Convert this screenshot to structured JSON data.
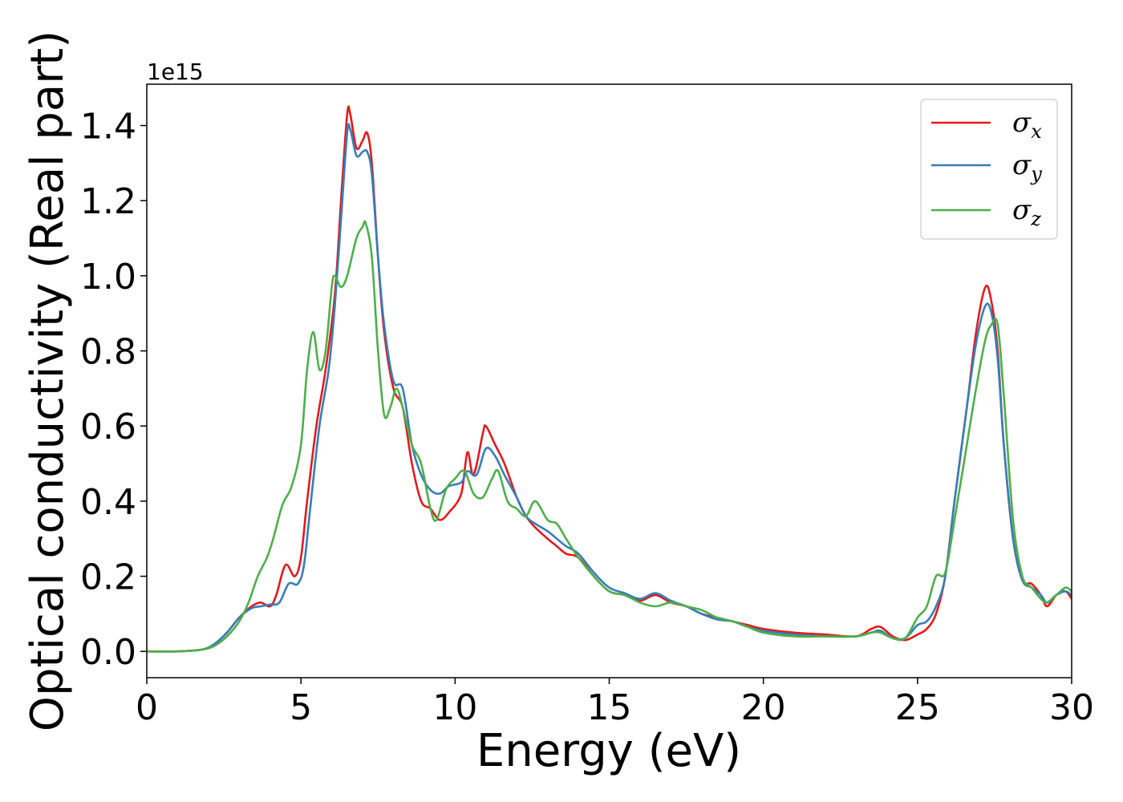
{
  "chart_data": {
    "type": "line",
    "xlabel": "Energy (eV)",
    "ylabel": "Optical conductivity (Real part)",
    "y_offset_label": "1e15",
    "xlim": [
      0,
      30
    ],
    "ylim": [
      -0.07,
      1.51
    ],
    "x_ticks": [
      0,
      5,
      10,
      15,
      20,
      25,
      30
    ],
    "x_tick_labels": [
      "0",
      "5",
      "10",
      "15",
      "20",
      "25",
      "30"
    ],
    "y_ticks": [
      0.0,
      0.2,
      0.4,
      0.6,
      0.8,
      1.0,
      1.2,
      1.4
    ],
    "y_tick_labels": [
      "0.0",
      "0.2",
      "0.4",
      "0.6",
      "0.8",
      "1.0",
      "1.2",
      "1.4"
    ],
    "grid": false,
    "legend_position": "top-right",
    "series": [
      {
        "name": "σx",
        "symbol": "σ",
        "sub": "x",
        "color": "#e41a1c",
        "points": [
          [
            0,
            0
          ],
          [
            1,
            0
          ],
          [
            1.8,
            0.005
          ],
          [
            2.2,
            0.02
          ],
          [
            2.6,
            0.05
          ],
          [
            3,
            0.09
          ],
          [
            3.4,
            0.12
          ],
          [
            3.7,
            0.13
          ],
          [
            4.0,
            0.12
          ],
          [
            4.2,
            0.15
          ],
          [
            4.5,
            0.23
          ],
          [
            4.8,
            0.2
          ],
          [
            5.0,
            0.25
          ],
          [
            5.2,
            0.4
          ],
          [
            5.5,
            0.6
          ],
          [
            5.8,
            0.75
          ],
          [
            6.1,
            0.95
          ],
          [
            6.3,
            1.2
          ],
          [
            6.5,
            1.43
          ],
          [
            6.6,
            1.43
          ],
          [
            6.8,
            1.34
          ],
          [
            7.0,
            1.36
          ],
          [
            7.15,
            1.38
          ],
          [
            7.3,
            1.3
          ],
          [
            7.5,
            1.05
          ],
          [
            7.7,
            0.85
          ],
          [
            8.0,
            0.7
          ],
          [
            8.3,
            0.65
          ],
          [
            8.6,
            0.5
          ],
          [
            8.9,
            0.4
          ],
          [
            9.2,
            0.38
          ],
          [
            9.5,
            0.35
          ],
          [
            9.8,
            0.37
          ],
          [
            10.2,
            0.42
          ],
          [
            10.4,
            0.53
          ],
          [
            10.6,
            0.47
          ],
          [
            10.9,
            0.58
          ],
          [
            11.0,
            0.6
          ],
          [
            11.3,
            0.55
          ],
          [
            11.6,
            0.5
          ],
          [
            12.0,
            0.41
          ],
          [
            12.3,
            0.36
          ],
          [
            12.6,
            0.33
          ],
          [
            13.0,
            0.3
          ],
          [
            13.3,
            0.28
          ],
          [
            13.6,
            0.26
          ],
          [
            14.0,
            0.25
          ],
          [
            14.5,
            0.2
          ],
          [
            15.0,
            0.16
          ],
          [
            15.5,
            0.15
          ],
          [
            16.0,
            0.135
          ],
          [
            16.5,
            0.15
          ],
          [
            17.0,
            0.13
          ],
          [
            17.5,
            0.12
          ],
          [
            18.0,
            0.1
          ],
          [
            18.5,
            0.09
          ],
          [
            19.0,
            0.08
          ],
          [
            19.5,
            0.07
          ],
          [
            20.0,
            0.06
          ],
          [
            21.0,
            0.05
          ],
          [
            22.0,
            0.045
          ],
          [
            23.0,
            0.04
          ],
          [
            23.5,
            0.06
          ],
          [
            23.8,
            0.065
          ],
          [
            24.2,
            0.04
          ],
          [
            24.6,
            0.03
          ],
          [
            25.0,
            0.045
          ],
          [
            25.3,
            0.06
          ],
          [
            25.6,
            0.1
          ],
          [
            25.9,
            0.2
          ],
          [
            26.2,
            0.4
          ],
          [
            26.6,
            0.65
          ],
          [
            26.9,
            0.85
          ],
          [
            27.2,
            0.97
          ],
          [
            27.4,
            0.93
          ],
          [
            27.6,
            0.8
          ],
          [
            27.8,
            0.55
          ],
          [
            28.1,
            0.3
          ],
          [
            28.4,
            0.19
          ],
          [
            28.7,
            0.18
          ],
          [
            29.0,
            0.15
          ],
          [
            29.2,
            0.12
          ],
          [
            29.5,
            0.15
          ],
          [
            29.8,
            0.16
          ],
          [
            30.0,
            0.14
          ]
        ]
      },
      {
        "name": "σy",
        "symbol": "σ",
        "sub": "y",
        "color": "#377eb8",
        "points": [
          [
            0,
            0
          ],
          [
            1,
            0
          ],
          [
            1.8,
            0.005
          ],
          [
            2.2,
            0.02
          ],
          [
            2.6,
            0.05
          ],
          [
            3,
            0.09
          ],
          [
            3.4,
            0.115
          ],
          [
            3.7,
            0.12
          ],
          [
            4.0,
            0.125
          ],
          [
            4.3,
            0.13
          ],
          [
            4.6,
            0.18
          ],
          [
            4.9,
            0.18
          ],
          [
            5.1,
            0.23
          ],
          [
            5.3,
            0.38
          ],
          [
            5.6,
            0.6
          ],
          [
            5.9,
            0.75
          ],
          [
            6.1,
            0.92
          ],
          [
            6.3,
            1.15
          ],
          [
            6.5,
            1.38
          ],
          [
            6.6,
            1.39
          ],
          [
            6.8,
            1.32
          ],
          [
            7.0,
            1.33
          ],
          [
            7.15,
            1.33
          ],
          [
            7.3,
            1.27
          ],
          [
            7.5,
            1.05
          ],
          [
            7.7,
            0.87
          ],
          [
            8.0,
            0.72
          ],
          [
            8.3,
            0.7
          ],
          [
            8.6,
            0.55
          ],
          [
            8.9,
            0.47
          ],
          [
            9.2,
            0.43
          ],
          [
            9.5,
            0.42
          ],
          [
            9.8,
            0.44
          ],
          [
            10.2,
            0.45
          ],
          [
            10.4,
            0.48
          ],
          [
            10.7,
            0.47
          ],
          [
            11.0,
            0.54
          ],
          [
            11.3,
            0.52
          ],
          [
            11.6,
            0.47
          ],
          [
            12.0,
            0.41
          ],
          [
            12.3,
            0.36
          ],
          [
            12.6,
            0.34
          ],
          [
            13.0,
            0.32
          ],
          [
            13.3,
            0.3
          ],
          [
            13.6,
            0.28
          ],
          [
            14.0,
            0.26
          ],
          [
            14.5,
            0.21
          ],
          [
            15.0,
            0.17
          ],
          [
            15.5,
            0.155
          ],
          [
            16.0,
            0.14
          ],
          [
            16.5,
            0.155
          ],
          [
            17.0,
            0.135
          ],
          [
            17.5,
            0.12
          ],
          [
            18.0,
            0.1
          ],
          [
            18.5,
            0.085
          ],
          [
            19.0,
            0.08
          ],
          [
            19.5,
            0.065
          ],
          [
            20.0,
            0.055
          ],
          [
            21.0,
            0.045
          ],
          [
            22.0,
            0.04
          ],
          [
            23.0,
            0.04
          ],
          [
            23.5,
            0.05
          ],
          [
            23.8,
            0.055
          ],
          [
            24.2,
            0.035
          ],
          [
            24.6,
            0.035
          ],
          [
            25.0,
            0.07
          ],
          [
            25.3,
            0.08
          ],
          [
            25.6,
            0.12
          ],
          [
            25.9,
            0.2
          ],
          [
            26.2,
            0.4
          ],
          [
            26.6,
            0.65
          ],
          [
            26.9,
            0.82
          ],
          [
            27.2,
            0.92
          ],
          [
            27.4,
            0.9
          ],
          [
            27.6,
            0.78
          ],
          [
            27.8,
            0.55
          ],
          [
            28.1,
            0.3
          ],
          [
            28.4,
            0.19
          ],
          [
            28.7,
            0.17
          ],
          [
            29.0,
            0.15
          ],
          [
            29.2,
            0.13
          ],
          [
            29.5,
            0.15
          ],
          [
            29.8,
            0.16
          ],
          [
            30.0,
            0.15
          ]
        ]
      },
      {
        "name": "σz",
        "symbol": "σ",
        "sub": "z",
        "color": "#4daf4a",
        "points": [
          [
            0,
            0
          ],
          [
            1,
            0
          ],
          [
            1.8,
            0.005
          ],
          [
            2.2,
            0.015
          ],
          [
            2.6,
            0.04
          ],
          [
            3,
            0.08
          ],
          [
            3.3,
            0.13
          ],
          [
            3.6,
            0.2
          ],
          [
            3.9,
            0.25
          ],
          [
            4.1,
            0.3
          ],
          [
            4.4,
            0.39
          ],
          [
            4.7,
            0.44
          ],
          [
            5.0,
            0.55
          ],
          [
            5.2,
            0.75
          ],
          [
            5.4,
            0.85
          ],
          [
            5.6,
            0.75
          ],
          [
            5.8,
            0.8
          ],
          [
            6.0,
            0.97
          ],
          [
            6.1,
            1.0
          ],
          [
            6.3,
            0.97
          ],
          [
            6.5,
            1.0
          ],
          [
            6.8,
            1.1
          ],
          [
            7.0,
            1.13
          ],
          [
            7.1,
            1.14
          ],
          [
            7.3,
            1.05
          ],
          [
            7.5,
            0.8
          ],
          [
            7.7,
            0.63
          ],
          [
            7.9,
            0.65
          ],
          [
            8.1,
            0.7
          ],
          [
            8.3,
            0.65
          ],
          [
            8.6,
            0.55
          ],
          [
            8.9,
            0.5
          ],
          [
            9.2,
            0.38
          ],
          [
            9.4,
            0.35
          ],
          [
            9.7,
            0.43
          ],
          [
            10.0,
            0.46
          ],
          [
            10.3,
            0.48
          ],
          [
            10.6,
            0.42
          ],
          [
            10.9,
            0.41
          ],
          [
            11.2,
            0.46
          ],
          [
            11.4,
            0.48
          ],
          [
            11.7,
            0.4
          ],
          [
            12.0,
            0.38
          ],
          [
            12.3,
            0.36
          ],
          [
            12.6,
            0.4
          ],
          [
            13.0,
            0.35
          ],
          [
            13.3,
            0.34
          ],
          [
            13.6,
            0.3
          ],
          [
            14.0,
            0.25
          ],
          [
            14.5,
            0.2
          ],
          [
            15.0,
            0.16
          ],
          [
            15.5,
            0.15
          ],
          [
            16.0,
            0.13
          ],
          [
            16.5,
            0.12
          ],
          [
            17.0,
            0.13
          ],
          [
            17.5,
            0.12
          ],
          [
            18.0,
            0.11
          ],
          [
            18.5,
            0.09
          ],
          [
            19.0,
            0.08
          ],
          [
            19.5,
            0.065
          ],
          [
            20.0,
            0.05
          ],
          [
            21.0,
            0.04
          ],
          [
            22.0,
            0.04
          ],
          [
            23.0,
            0.04
          ],
          [
            23.5,
            0.05
          ],
          [
            23.8,
            0.05
          ],
          [
            24.2,
            0.035
          ],
          [
            24.6,
            0.035
          ],
          [
            25.0,
            0.09
          ],
          [
            25.3,
            0.12
          ],
          [
            25.6,
            0.2
          ],
          [
            25.9,
            0.21
          ],
          [
            26.2,
            0.35
          ],
          [
            26.6,
            0.55
          ],
          [
            26.9,
            0.7
          ],
          [
            27.2,
            0.83
          ],
          [
            27.4,
            0.87
          ],
          [
            27.6,
            0.87
          ],
          [
            27.8,
            0.68
          ],
          [
            28.1,
            0.35
          ],
          [
            28.4,
            0.2
          ],
          [
            28.7,
            0.17
          ],
          [
            29.0,
            0.14
          ],
          [
            29.2,
            0.13
          ],
          [
            29.5,
            0.15
          ],
          [
            29.8,
            0.17
          ],
          [
            30.0,
            0.16
          ]
        ]
      }
    ]
  }
}
